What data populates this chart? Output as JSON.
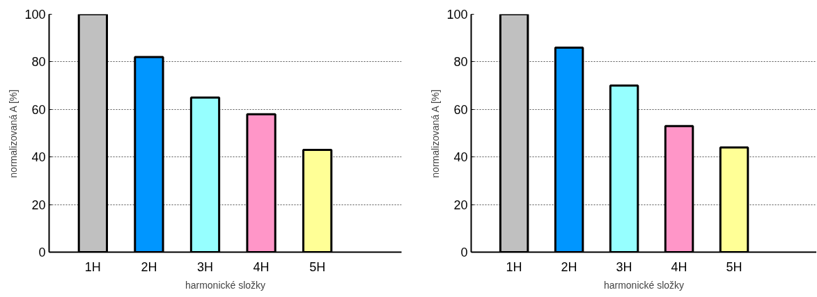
{
  "chart_data": [
    {
      "type": "bar",
      "xlabel": "harmonické složky",
      "ylabel": "normalizovaná A [%]",
      "categories": [
        "1H",
        "2H",
        "3H",
        "4H",
        "5H"
      ],
      "values": [
        100,
        82,
        65,
        58,
        43
      ],
      "colors": [
        "#c0c0c0",
        "#0096ff",
        "#96ffff",
        "#ff96c8",
        "#ffff96"
      ],
      "ylim": [
        0,
        100
      ],
      "yticks": [
        0,
        20,
        40,
        60,
        80,
        100
      ],
      "grid": "y"
    },
    {
      "type": "bar",
      "xlabel": "harmonické složky",
      "ylabel": "normalizovaná A [%]",
      "categories": [
        "1H",
        "2H",
        "3H",
        "4H",
        "5H"
      ],
      "values": [
        100,
        86,
        70,
        53,
        44
      ],
      "colors": [
        "#c0c0c0",
        "#0096ff",
        "#96ffff",
        "#ff96c8",
        "#ffff96"
      ],
      "ylim": [
        0,
        100
      ],
      "yticks": [
        0,
        20,
        40,
        60,
        80,
        100
      ],
      "grid": "y"
    }
  ]
}
